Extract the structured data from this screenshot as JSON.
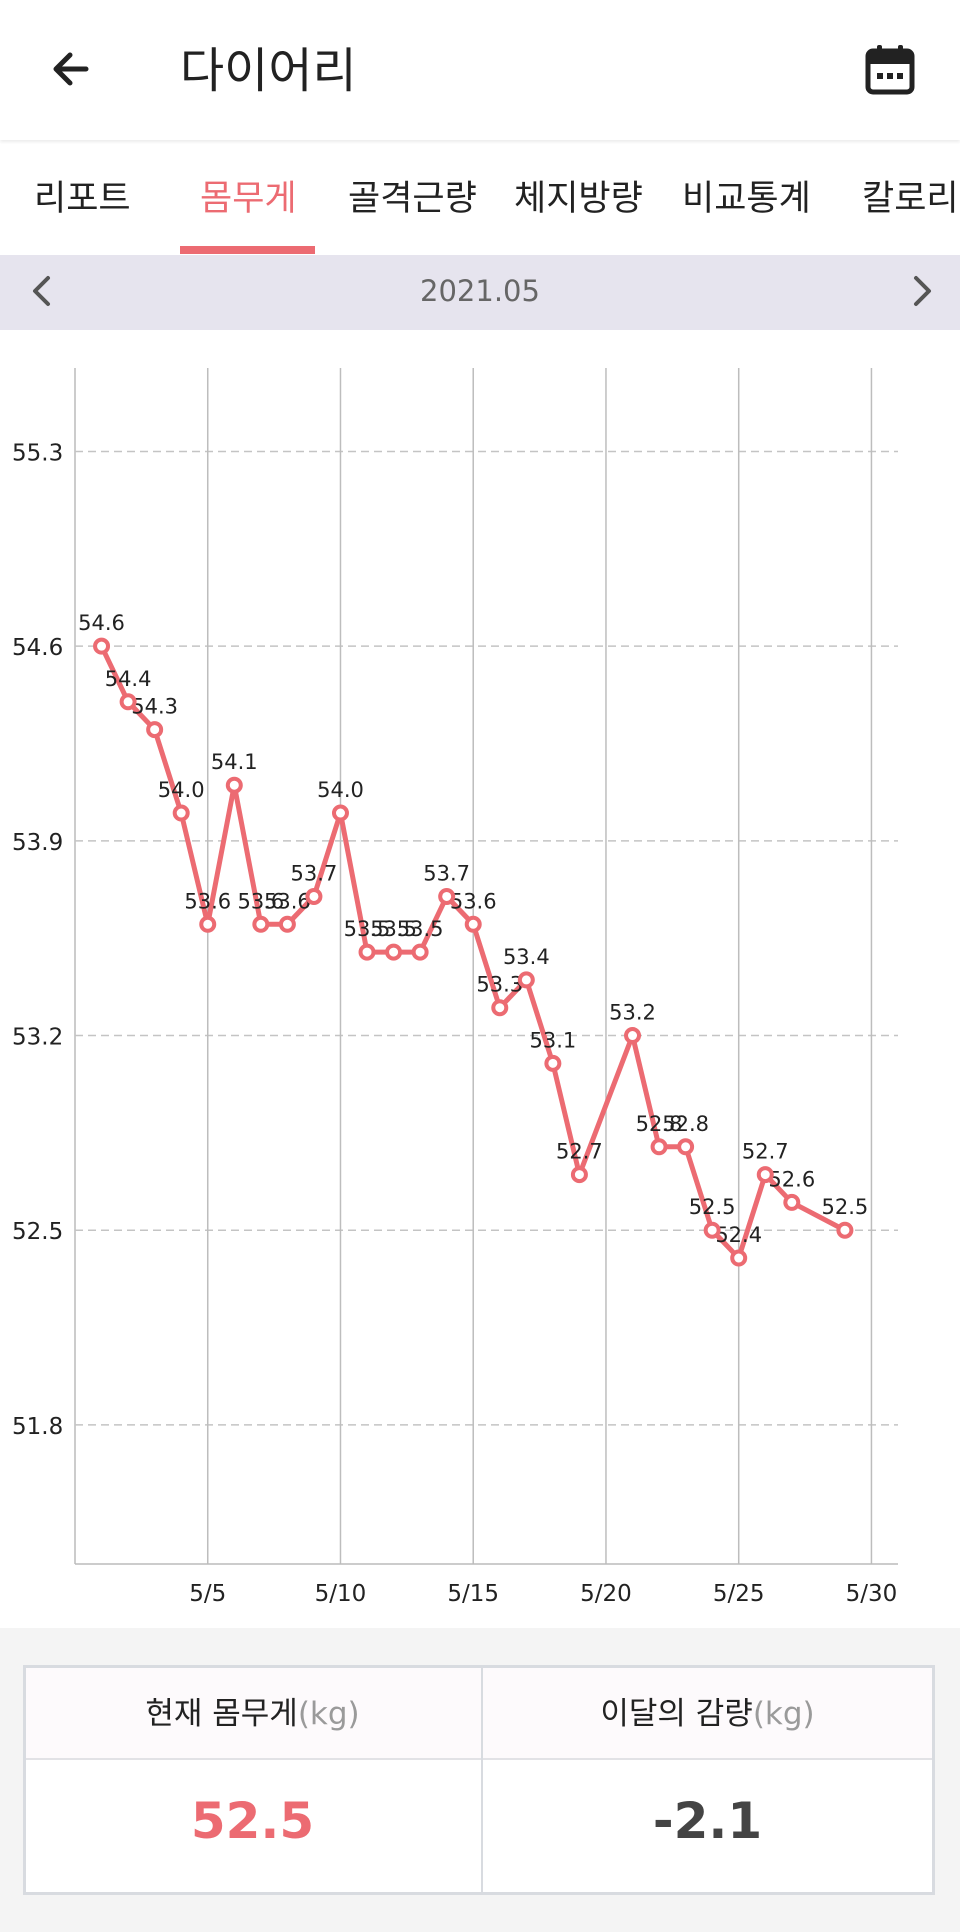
{
  "header": {
    "title": "다이어리",
    "back_icon": "arrow-left-icon",
    "calendar_icon": "calendar-icon"
  },
  "tabs": [
    {
      "label": "리포트",
      "active": false
    },
    {
      "label": "몸무게",
      "active": true
    },
    {
      "label": "골격근량",
      "active": false
    },
    {
      "label": "체지방량",
      "active": false
    },
    {
      "label": "비교통계",
      "active": false
    },
    {
      "label": "칼로리",
      "active": false
    }
  ],
  "month_nav": {
    "label": "2021.05",
    "prev_icon": "chevron-left-icon",
    "next_icon": "chevron-right-icon"
  },
  "colors": {
    "accent": "#ec6b72",
    "nav_bg": "#e6e4ee",
    "value_dark": "#444444"
  },
  "chart_data": {
    "type": "line",
    "xlabel": "",
    "ylabel": "",
    "x_ticks": [
      5,
      10,
      15,
      20,
      25,
      30
    ],
    "x_tick_labels": [
      "5/5",
      "5/10",
      "5/15",
      "5/20",
      "5/25",
      "5/30"
    ],
    "xlim": [
      0,
      31
    ],
    "y_ticks": [
      51.8,
      52.5,
      53.2,
      53.9,
      54.6,
      55.3
    ],
    "y_tick_labels": [
      "51.8",
      "52.5",
      "53.2",
      "53.9",
      "54.6",
      "55.3"
    ],
    "ylim": [
      51.3,
      55.6
    ],
    "grid": true,
    "series": [
      {
        "color": "#ec6b72",
        "x": [
          1,
          2,
          3,
          4,
          5,
          6,
          7,
          8,
          9,
          10,
          11,
          12,
          13,
          14,
          15,
          16,
          17,
          18,
          19,
          21,
          22,
          23,
          24,
          25,
          26,
          27,
          29
        ],
        "values": [
          54.6,
          54.4,
          54.3,
          54.0,
          53.6,
          54.1,
          53.6,
          53.6,
          53.7,
          54.0,
          53.5,
          53.5,
          53.5,
          53.7,
          53.6,
          53.3,
          53.4,
          53.1,
          52.7,
          53.2,
          52.8,
          52.8,
          52.5,
          52.4,
          52.7,
          52.6,
          52.5
        ],
        "labels": [
          "54.6",
          "54.4",
          "54.3",
          "54.0",
          "53.6",
          "54.1",
          "53.6",
          "53.6",
          "53.7",
          "54.0",
          "53.5",
          "53.5",
          "53.5",
          "53.7",
          "53.6",
          "53.3",
          "53.4",
          "53.1",
          "52.7",
          "53.2",
          "52.8",
          "52.8",
          "52.5",
          "52.4",
          "52.7",
          "52.6",
          "52.5"
        ]
      }
    ]
  },
  "stats": {
    "current_label": "현재 몸무게",
    "current_unit": "(kg)",
    "current_value": "52.5",
    "change_label": "이달의 감량",
    "change_unit": "(kg)",
    "change_value": "-2.1"
  }
}
